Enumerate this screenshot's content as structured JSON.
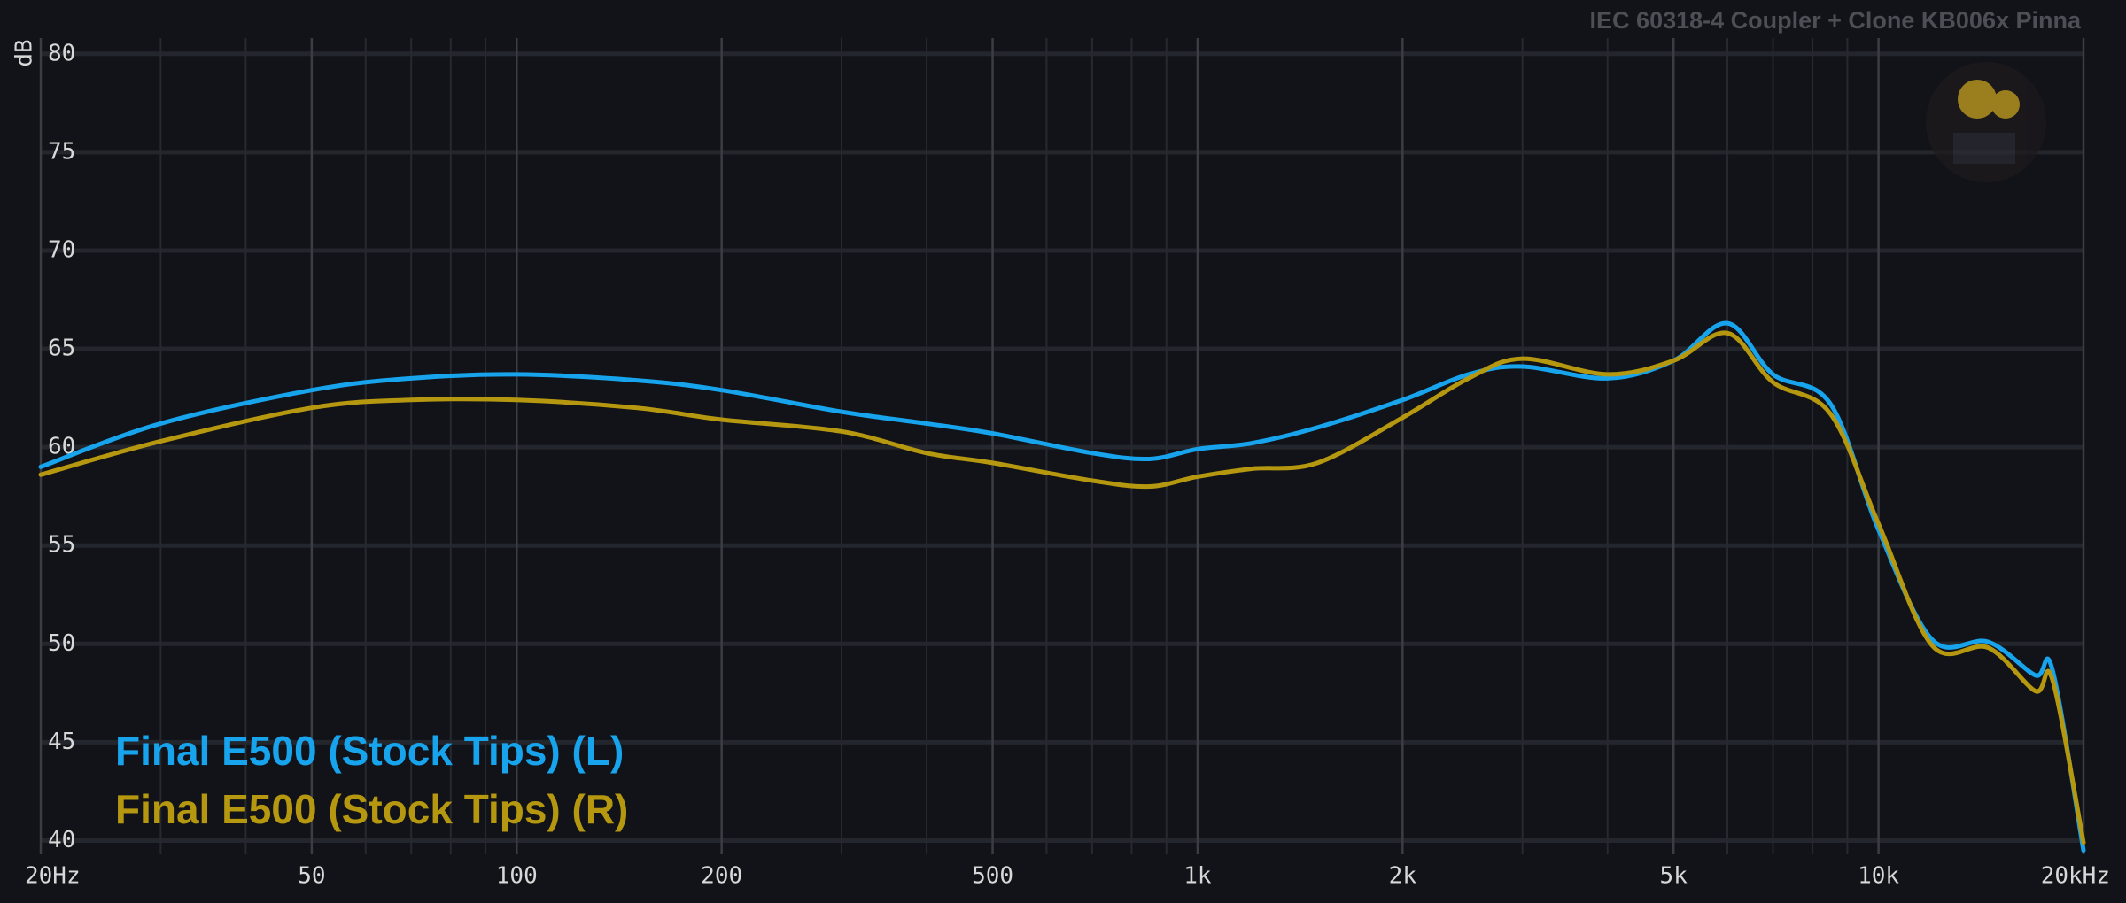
{
  "chart_data": {
    "type": "line",
    "title": "IEC 60318-4 Coupler + Clone KB006x Pinna",
    "ylabel": "dB",
    "xscale": "log",
    "x": [
      20,
      30,
      50,
      70,
      100,
      150,
      200,
      300,
      400,
      500,
      700,
      850,
      1000,
      1200,
      1500,
      2000,
      2500,
      3000,
      4000,
      5000,
      6000,
      7000,
      8500,
      10000,
      12000,
      14500,
      17000,
      18000,
      20000
    ],
    "series": [
      {
        "name": "Final E500 (Stock Tips) (L)",
        "color": "#17a4ec",
        "values": [
          59.0,
          61.2,
          62.9,
          63.5,
          63.7,
          63.4,
          62.9,
          61.8,
          61.2,
          60.7,
          59.7,
          59.4,
          59.9,
          60.2,
          61.0,
          62.4,
          63.7,
          64.1,
          63.5,
          64.4,
          66.3,
          63.7,
          62.2,
          55.8,
          50.2,
          50.1,
          48.4,
          48.7,
          39.5
        ]
      },
      {
        "name": "Final E500 (Stock Tips) (R)",
        "color": "#b5980f",
        "values": [
          58.6,
          60.3,
          62.0,
          62.4,
          62.4,
          62.0,
          61.4,
          60.8,
          59.7,
          59.2,
          58.3,
          58.0,
          58.5,
          58.9,
          59.2,
          61.5,
          63.5,
          64.5,
          63.7,
          64.4,
          65.8,
          63.3,
          61.7,
          56.1,
          49.9,
          49.8,
          47.6,
          48.2,
          39.9
        ]
      }
    ],
    "xlim": [
      20,
      20000
    ],
    "xticks": [
      {
        "value": 20,
        "label": "20Hz"
      },
      50,
      100,
      200,
      500,
      {
        "value": 1000,
        "label": "1k"
      },
      {
        "value": 2000,
        "label": "2k"
      },
      {
        "value": 5000,
        "label": "5k"
      },
      {
        "value": 10000,
        "label": "10k"
      },
      {
        "value": 20000,
        "label": "20kHz"
      }
    ],
    "xminorticks": [
      30,
      40,
      60,
      70,
      80,
      90,
      300,
      400,
      600,
      700,
      800,
      900,
      3000,
      4000,
      6000,
      7000,
      8000,
      9000
    ],
    "ylim": [
      39.3,
      80.8
    ],
    "yticks": [
      40,
      45,
      50,
      55,
      60,
      65,
      70,
      75,
      80
    ],
    "grid": true,
    "legend": "bottom-left"
  }
}
